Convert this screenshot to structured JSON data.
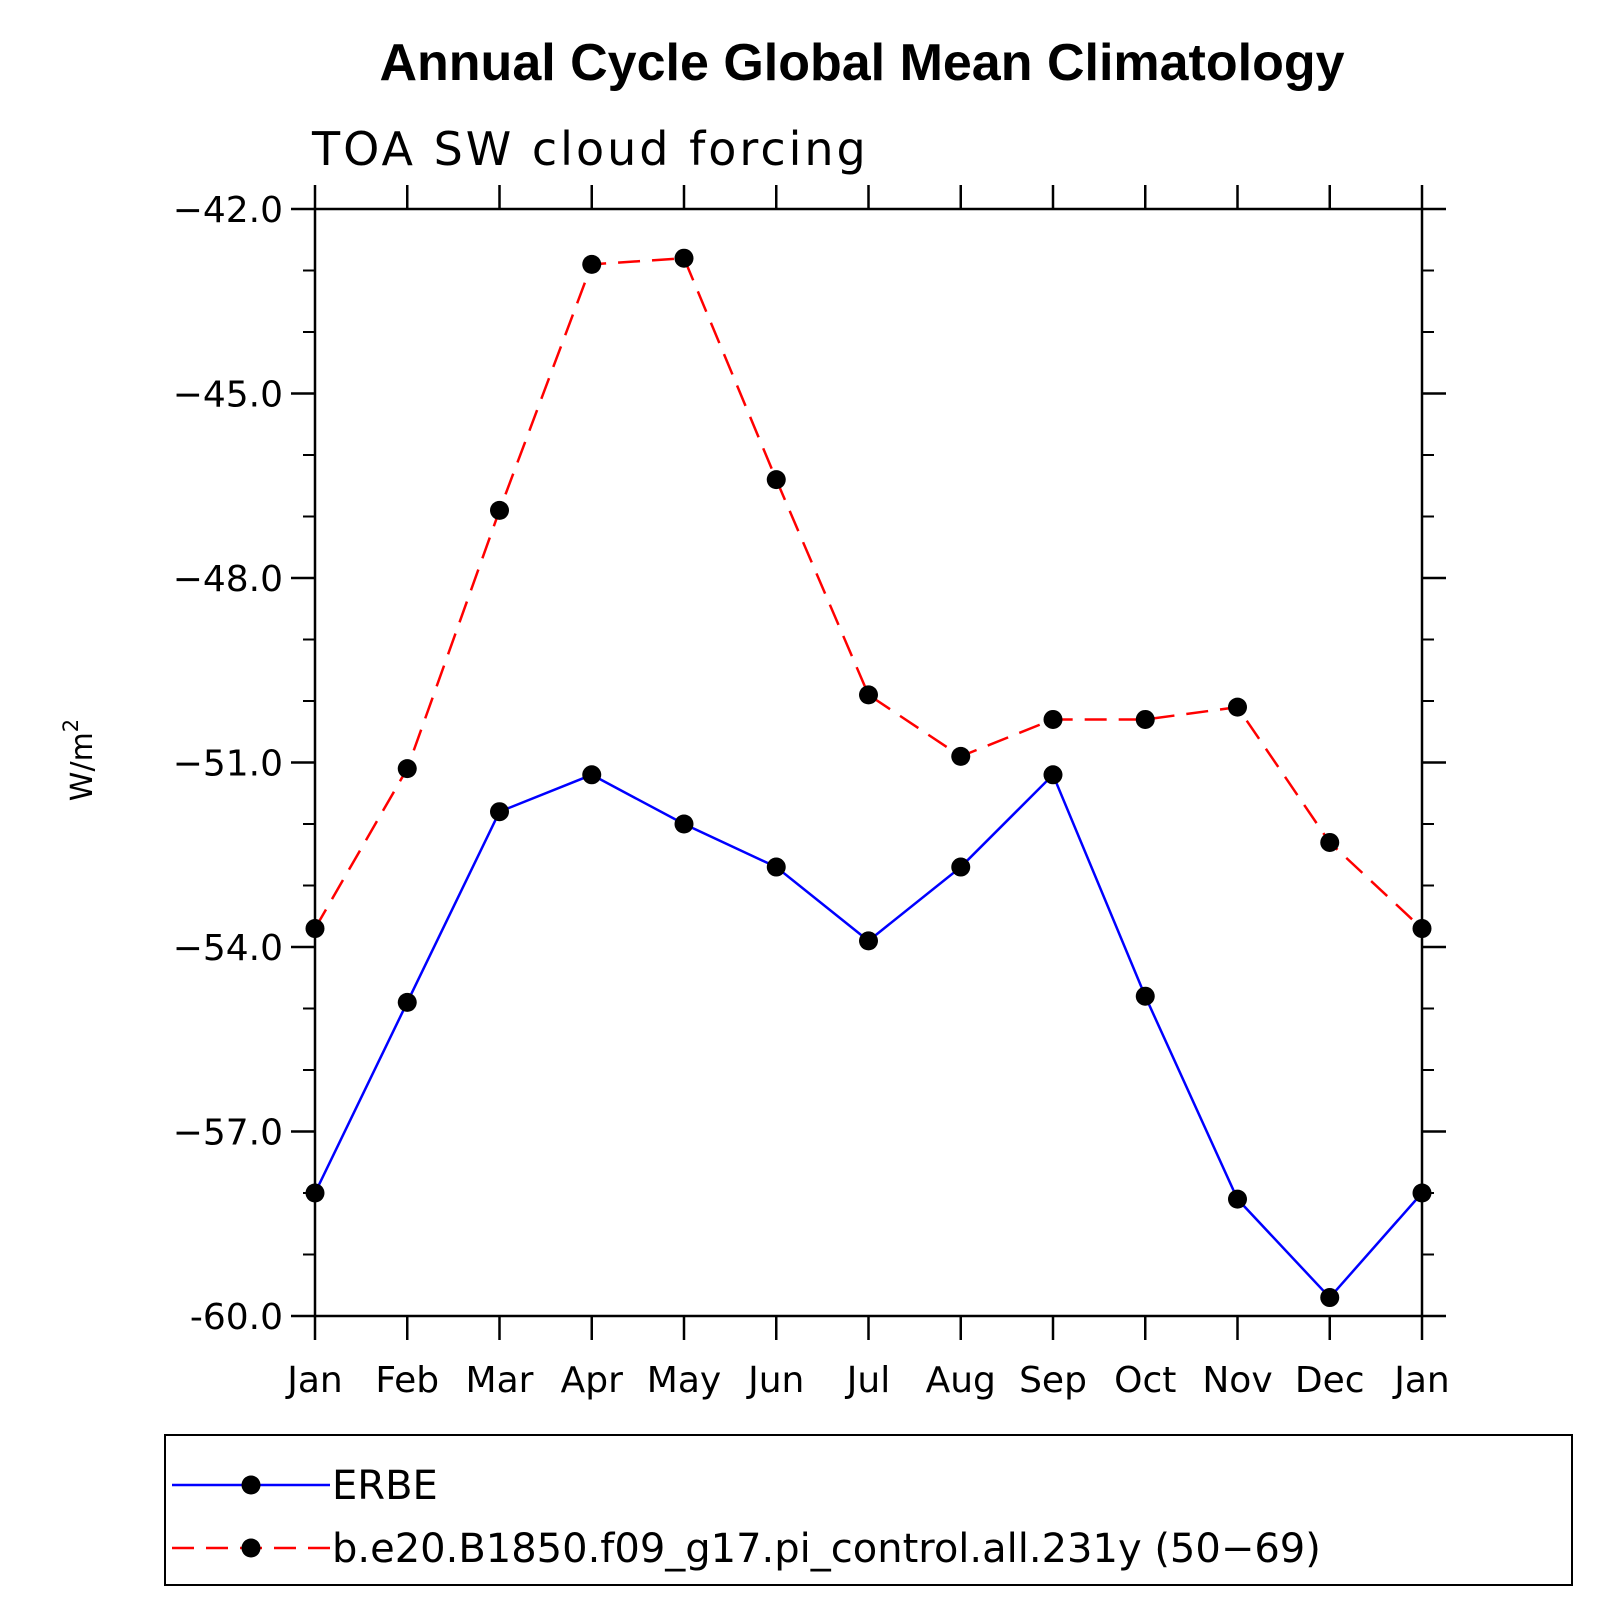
{
  "chart_data": {
    "type": "line",
    "title": "Annual Cycle Global Mean Climatology",
    "subtitle": "TOA SW cloud forcing",
    "xlabel": "",
    "ylabel": "W/m",
    "ylabel_superscript": "2",
    "categories": [
      "Jan",
      "Feb",
      "Mar",
      "Apr",
      "May",
      "Jun",
      "Jul",
      "Aug",
      "Sep",
      "Oct",
      "Nov",
      "Dec",
      "Jan"
    ],
    "ylim": [
      -60.0,
      -42.0
    ],
    "yticks": [
      -42.0,
      -45.0,
      -48.0,
      -51.0,
      -54.0,
      -57.0,
      -60.0
    ],
    "ytick_labels": [
      "−42.0",
      "−45.0",
      "−48.0",
      "−51.0",
      "−54.0",
      "−57.0",
      "-60.0"
    ],
    "grid": false,
    "legend_position": "bottom",
    "series": [
      {
        "name": "ERBE",
        "color": "#0000ff",
        "dash": "solid",
        "marker": "filled-circle",
        "values": [
          -58.0,
          -54.9,
          -51.8,
          -51.2,
          -52.0,
          -52.7,
          -53.9,
          -52.7,
          -51.2,
          -54.8,
          -58.1,
          -59.7,
          -58.0
        ]
      },
      {
        "name": "b.e20.B1850.f09_g17.pi_control.all.231y (50−69)",
        "color": "#ff0000",
        "dash": "dashed",
        "marker": "filled-circle",
        "values": [
          -53.7,
          -51.1,
          -46.9,
          -42.9,
          -42.8,
          -46.4,
          -49.9,
          -50.9,
          -50.3,
          -50.3,
          -50.1,
          -52.3,
          -53.7
        ]
      }
    ]
  }
}
